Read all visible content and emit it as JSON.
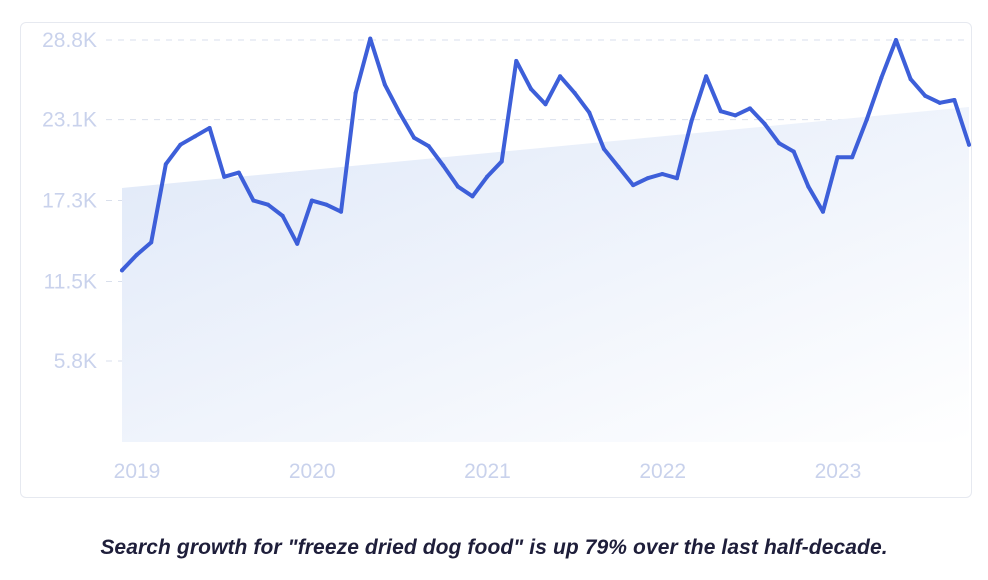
{
  "caption": "Search growth for \"freeze dried dog food\" is up 79% over the last half-decade.",
  "colors": {
    "line": "#3d5fd9",
    "trend_fill_start": "#dfe8f8",
    "trend_fill_end": "#ffffff",
    "grid": "#d9dfec",
    "tick_text": "#c9d2ec",
    "caption": "#1e1e3a"
  },
  "chart_data": {
    "type": "line",
    "title": "",
    "xlabel": "",
    "ylabel": "",
    "grid": true,
    "yticks": [
      {
        "label": "28.8K",
        "value": 28800
      },
      {
        "label": "23.1K",
        "value": 23100
      },
      {
        "label": "17.3K",
        "value": 17300
      },
      {
        "label": "11.5K",
        "value": 11500
      },
      {
        "label": "5.8K",
        "value": 5800
      }
    ],
    "xticks": [
      {
        "label": "2019",
        "value": "2019-01"
      },
      {
        "label": "2020",
        "value": "2020-01"
      },
      {
        "label": "2021",
        "value": "2021-01"
      },
      {
        "label": "2022",
        "value": "2022-01"
      },
      {
        "label": "2023",
        "value": "2023-01"
      }
    ],
    "xlim": [
      "2019-01",
      "2023-11"
    ],
    "ylim": [
      0,
      28800
    ],
    "trend": {
      "start": 18200,
      "end": 24000
    },
    "series": [
      {
        "name": "",
        "x": [
          "2019-01",
          "2019-02",
          "2019-03",
          "2019-04",
          "2019-05",
          "2019-06",
          "2019-07",
          "2019-08",
          "2019-09",
          "2019-10",
          "2019-11",
          "2019-12",
          "2020-01",
          "2020-02",
          "2020-03",
          "2020-04",
          "2020-05",
          "2020-06",
          "2020-07",
          "2020-08",
          "2020-09",
          "2020-10",
          "2020-11",
          "2020-12",
          "2021-01",
          "2021-02",
          "2021-03",
          "2021-04",
          "2021-05",
          "2021-06",
          "2021-07",
          "2021-08",
          "2021-09",
          "2021-10",
          "2021-11",
          "2021-12",
          "2022-01",
          "2022-02",
          "2022-03",
          "2022-04",
          "2022-05",
          "2022-06",
          "2022-07",
          "2022-08",
          "2022-09",
          "2022-10",
          "2022-11",
          "2022-12",
          "2023-01",
          "2023-02",
          "2023-03",
          "2023-04",
          "2023-05",
          "2023-06",
          "2023-07",
          "2023-08",
          "2023-09",
          "2023-10",
          "2023-11"
        ],
        "values": [
          12300,
          13400,
          14300,
          19900,
          21300,
          21900,
          22500,
          19000,
          19300,
          17300,
          17000,
          16200,
          14200,
          17300,
          17000,
          16500,
          25000,
          28900,
          25600,
          23600,
          21800,
          21200,
          19800,
          18300,
          17600,
          19000,
          20100,
          27300,
          25300,
          24200,
          26200,
          25000,
          23600,
          21000,
          19700,
          18400,
          18900,
          19200,
          18900,
          23000,
          26200,
          23700,
          23400,
          23900,
          22800,
          21400,
          20800,
          18300,
          16500,
          20400,
          20400,
          23100,
          26100,
          28800,
          26000,
          24800,
          24300,
          24500,
          21300
        ]
      }
    ]
  }
}
